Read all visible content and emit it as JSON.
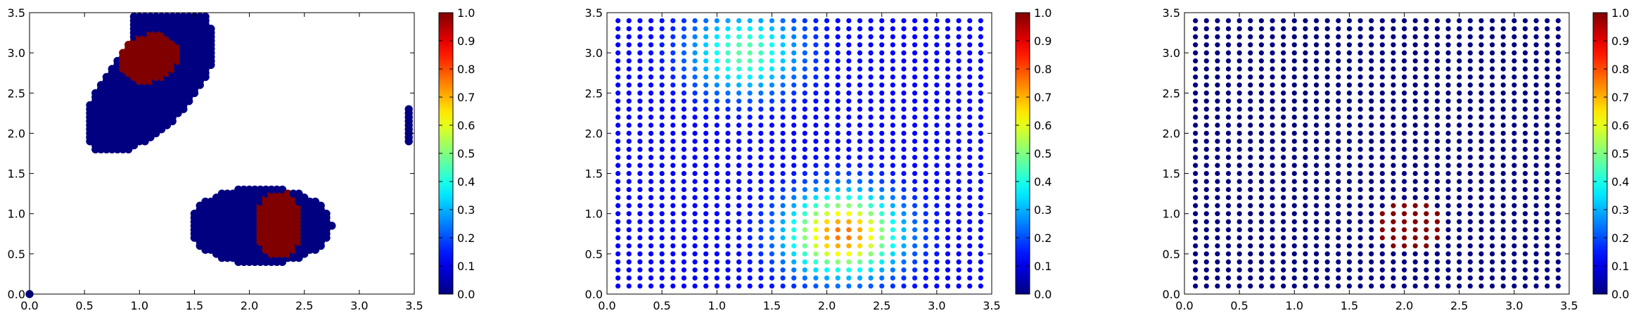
{
  "figure": {
    "panel_count": 3
  },
  "chart_data": [
    {
      "type": "scatter",
      "title": "",
      "xlabel": "",
      "ylabel": "",
      "xlim": [
        0.0,
        3.5
      ],
      "ylim": [
        0.0,
        3.5
      ],
      "xticks": [
        "0.0",
        "0.5",
        "1.0",
        "1.5",
        "2.0",
        "2.5",
        "3.0",
        "3.5"
      ],
      "yticks": [
        "0.0",
        "0.5",
        "1.0",
        "1.5",
        "2.0",
        "2.5",
        "3.0",
        "3.5"
      ],
      "colormap": "jet",
      "clim": [
        0.0,
        1.0
      ],
      "colorbar_ticks": [
        "0.0",
        "0.1",
        "0.2",
        "0.3",
        "0.4",
        "0.5",
        "0.6",
        "0.7",
        "0.8",
        "0.9",
        "1.0"
      ],
      "grid": false,
      "description_of_values": "binary classification: two blobs of points with value 0 (dark blue) containing cores with value 1 (dark red); isolated points near origin and at x=3.45",
      "regions": [
        {
          "shape": "blob",
          "value": 0,
          "points_hint": "upper-left elongated cluster x 0.6-1.6, y 1.85-3.45"
        },
        {
          "shape": "blob",
          "value": 1,
          "points_hint": "core x 0.8-1.4, y 2.65-3.25"
        },
        {
          "shape": "blob",
          "value": 0,
          "points_hint": "lower-right ellipse x 1.45-2.75, y 0.35-1.35"
        },
        {
          "shape": "blob",
          "value": 1,
          "points_hint": "core x 2.05-2.5, y 0.4-1.2"
        },
        {
          "shape": "column",
          "value": 0,
          "points_hint": "x 3.45, y 1.9-2.3"
        }
      ]
    },
    {
      "type": "scatter",
      "title": "",
      "xlabel": "",
      "ylabel": "",
      "xlim": [
        0.0,
        3.5
      ],
      "ylim": [
        0.0,
        3.5
      ],
      "xticks": [
        "0.0",
        "0.5",
        "1.0",
        "1.5",
        "2.0",
        "2.5",
        "3.0",
        "3.5"
      ],
      "yticks": [
        "0.0",
        "0.5",
        "1.0",
        "1.5",
        "2.0",
        "2.5",
        "3.0",
        "3.5"
      ],
      "colormap": "jet",
      "clim": [
        0.0,
        1.0
      ],
      "colorbar_ticks": [
        "0.0",
        "0.1",
        "0.2",
        "0.3",
        "0.4",
        "0.5",
        "0.6",
        "0.7",
        "0.8",
        "0.9",
        "1.0"
      ],
      "grid": false,
      "grid_points": {
        "x_start": 0.1,
        "x_end": 3.4,
        "y_start": 0.1,
        "y_end": 3.4,
        "step": 0.1
      },
      "peaks": [
        {
          "x": 2.15,
          "y": 0.75,
          "value": 0.65
        },
        {
          "x": 1.25,
          "y": 3.0,
          "value": 0.35
        }
      ]
    },
    {
      "type": "scatter",
      "title": "",
      "xlabel": "",
      "ylabel": "",
      "xlim": [
        0.0,
        3.5
      ],
      "ylim": [
        0.0,
        3.5
      ],
      "xticks": [
        "0.0",
        "0.5",
        "1.0",
        "1.5",
        "2.0",
        "2.5",
        "3.0",
        "3.5"
      ],
      "yticks": [
        "0.0",
        "0.5",
        "1.0",
        "1.5",
        "2.0",
        "2.5",
        "3.0",
        "3.5"
      ],
      "colormap": "jet",
      "clim": [
        0.0,
        1.0
      ],
      "colorbar_ticks": [
        "0.0",
        "0.1",
        "0.2",
        "0.3",
        "0.4",
        "0.5",
        "0.6",
        "0.7",
        "0.8",
        "0.9",
        "1.0"
      ],
      "grid": false,
      "grid_points": {
        "x_start": 0.1,
        "x_end": 3.4,
        "y_start": 0.1,
        "y_end": 3.4,
        "step": 0.1
      },
      "hot_region": {
        "cx": 2.05,
        "cy": 0.85,
        "r": 0.35,
        "value": 1.0
      },
      "background_value": 0.0
    }
  ]
}
